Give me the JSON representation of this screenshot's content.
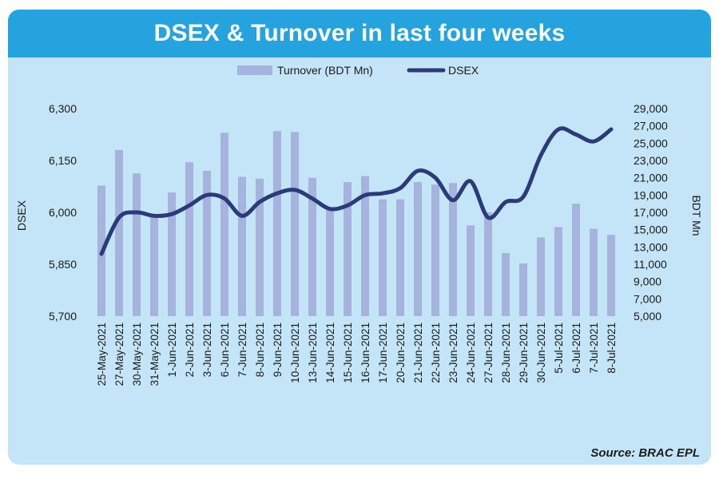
{
  "chart_data": {
    "type": "bar+line",
    "title": "DSEX & Turnover in last four weeks",
    "source": "Source: BRAC EPL",
    "categories": [
      "25-May-2021",
      "27-May-2021",
      "30-May-2021",
      "31-May-2021",
      "1-Jun-2021",
      "2-Jun-2021",
      "3-Jun-2021",
      "6-Jun-2021",
      "7-Jun-2021",
      "8-Jun-2021",
      "9-Jun-2021",
      "10-Jun-2021",
      "13-Jun-2021",
      "14-Jun-2021",
      "15-Jun-2021",
      "16-Jun-2021",
      "17-Jun-2021",
      "20-Jun-2021",
      "21-Jun-2021",
      "22-Jun-2021",
      "23-Jun-2021",
      "24-Jun-2021",
      "27-Jun-2021",
      "28-Jun-2021",
      "29-Jun-2021",
      "30-Jun-2021",
      "5-Jul-2021",
      "6-Jul-2021",
      "7-Jul-2021",
      "8-Jul-2021"
    ],
    "series": [
      {
        "name": "Turnover (BDT Mn)",
        "type": "bar",
        "axis": "right",
        "color": "#a6b4dd",
        "values": [
          20100,
          24200,
          21500,
          16800,
          19300,
          22800,
          21800,
          26200,
          21100,
          20900,
          26400,
          26300,
          21000,
          17400,
          20500,
          21200,
          18500,
          18500,
          20500,
          20200,
          20400,
          15500,
          17000,
          12300,
          11100,
          14100,
          15300,
          18000,
          15100,
          14400
        ]
      },
      {
        "name": "DSEX",
        "type": "line",
        "axis": "left",
        "color": "#2d3a7a",
        "values": [
          5880,
          5985,
          6000,
          5990,
          5995,
          6020,
          6050,
          6040,
          5990,
          6030,
          6055,
          6065,
          6040,
          6010,
          6020,
          6050,
          6055,
          6070,
          6120,
          6100,
          6035,
          6090,
          5985,
          6030,
          6045,
          6165,
          6240,
          6225,
          6205,
          6240
        ]
      }
    ],
    "ylabel": "DSEX",
    "ylabel_right": "BDT Mn",
    "ylim": [
      5700,
      6300
    ],
    "ylim_right": [
      5000,
      29000
    ],
    "yticks": [
      "6,300",
      "6,150",
      "6,000",
      "5,850",
      "5,700"
    ],
    "yticks_values": [
      6300,
      6150,
      6000,
      5850,
      5700
    ],
    "yticks_right": [
      "29,000",
      "27,000",
      "25,000",
      "23,000",
      "21,000",
      "19,000",
      "17,000",
      "15,000",
      "13,000",
      "11,000",
      "9,000",
      "7,000",
      "5,000"
    ],
    "yticks_right_values": [
      29000,
      27000,
      25000,
      23000,
      21000,
      19000,
      17000,
      15000,
      13000,
      11000,
      9000,
      7000,
      5000
    ],
    "legend": [
      "Turnover (BDT Mn)",
      "DSEX"
    ]
  }
}
